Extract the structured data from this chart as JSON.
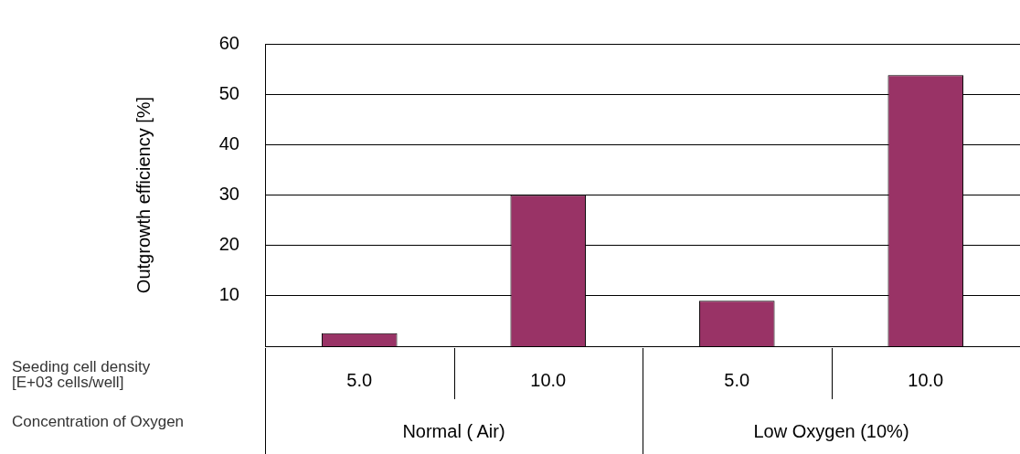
{
  "chart_data": {
    "type": "bar",
    "ylabel": "Outgrowth efficiency [%]",
    "xlabel": "Seeding cell density [E+03 cells/well]",
    "categories": [
      "5.0",
      "10.0",
      "5.0",
      "10.0"
    ],
    "values": [
      2.6,
      30,
      9,
      53.8
    ],
    "color": "#993366",
    "ylim": [
      0,
      60
    ],
    "yticks": [
      10,
      20,
      30,
      40,
      50,
      60
    ],
    "grid": "y",
    "legend": false,
    "annotations": [
      "Concentration of Oxygen",
      "Normal ( Air)",
      "Low Oxygen (10%)"
    ]
  }
}
